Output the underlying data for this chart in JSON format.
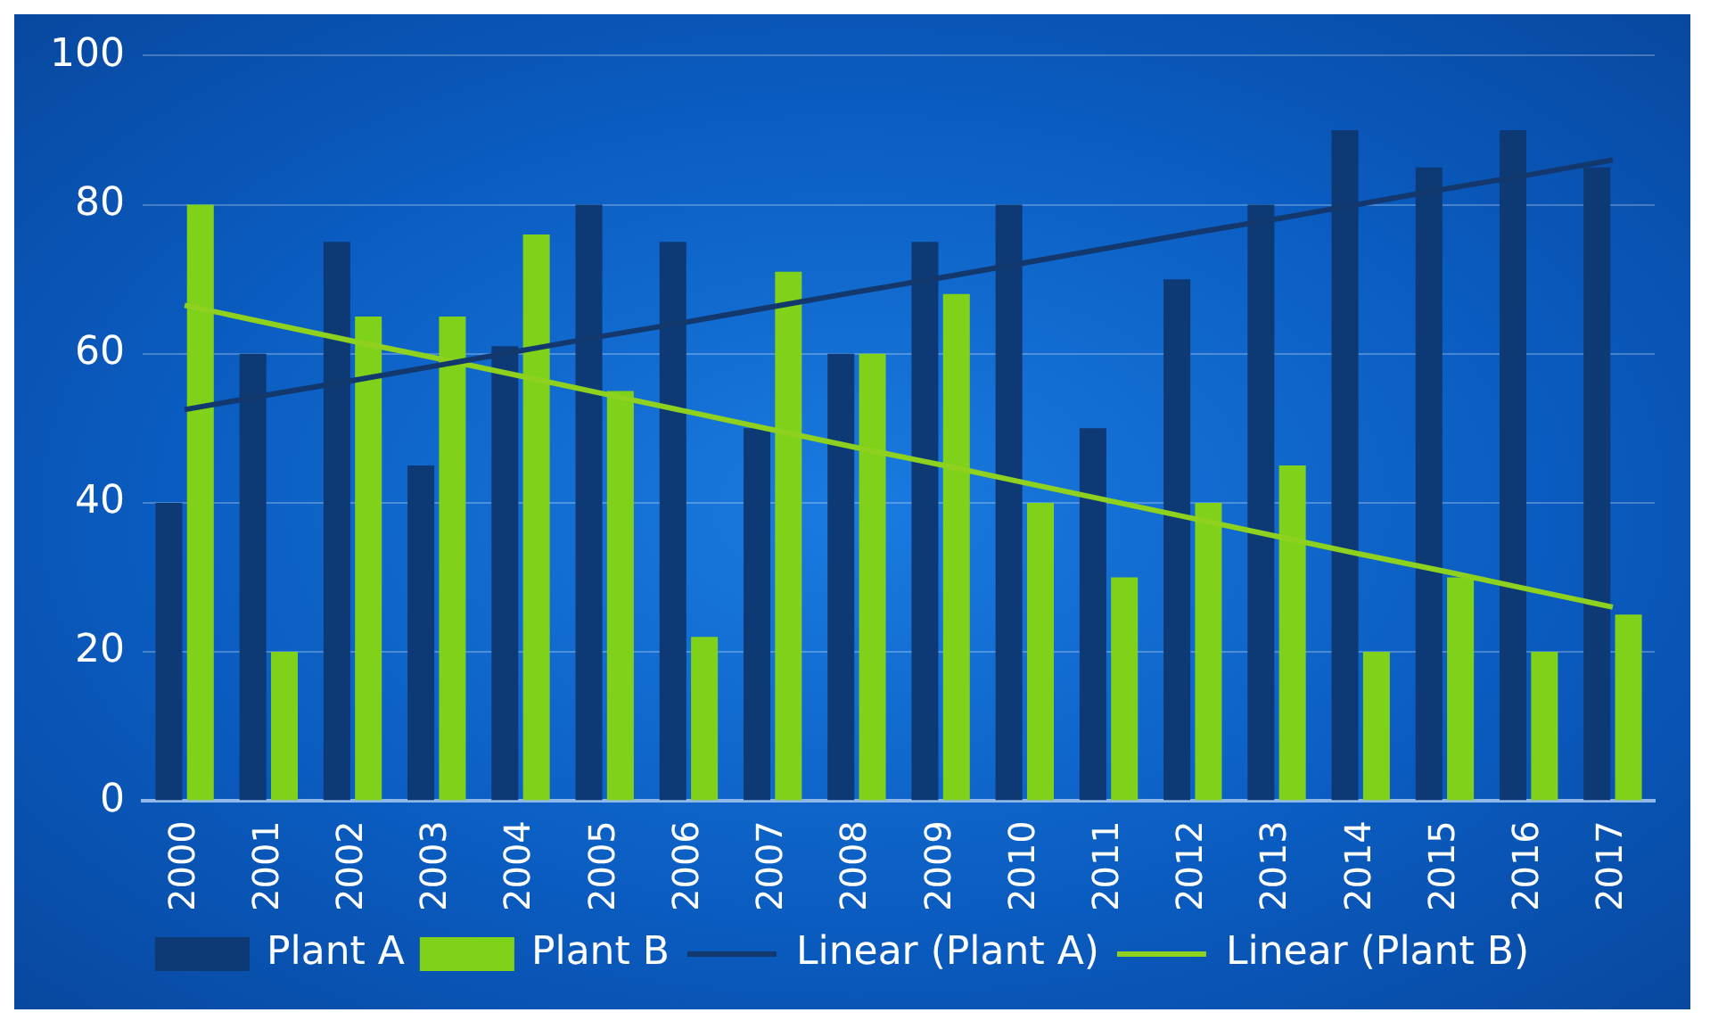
{
  "chart_data": {
    "type": "bar",
    "categories": [
      "2000",
      "2001",
      "2002",
      "2003",
      "2004",
      "2005",
      "2006",
      "2007",
      "2008",
      "2009",
      "2010",
      "2011",
      "2012",
      "2013",
      "2014",
      "2015",
      "2016",
      "2017"
    ],
    "series": [
      {
        "name": "Plant A",
        "color": "#0d3a75",
        "values": [
          40,
          60,
          75,
          45,
          61,
          80,
          75,
          50,
          60,
          75,
          80,
          50,
          70,
          80,
          90,
          85,
          90,
          85
        ]
      },
      {
        "name": "Plant B",
        "color": "#7fd11a",
        "values": [
          80,
          20,
          65,
          65,
          76,
          55,
          22,
          71,
          60,
          68,
          40,
          30,
          40,
          45,
          20,
          30,
          20,
          25
        ]
      },
      {
        "name": "Linear (Plant A)",
        "type": "line",
        "color": "#12386e",
        "values": [
          52.5,
          54.5,
          56.4,
          58.4,
          60.4,
          62.4,
          64.3,
          66.3,
          68.3,
          70.2,
          72.2,
          74.2,
          76.2,
          78.1,
          80.1,
          82.1,
          84.0,
          86
        ]
      },
      {
        "name": "Linear (Plant B)",
        "type": "line",
        "color": "#8ed11e",
        "values": [
          66.5,
          64.1,
          61.7,
          59.4,
          57.0,
          54.6,
          52.2,
          49.8,
          47.4,
          45.1,
          42.7,
          40.3,
          37.9,
          35.5,
          33.1,
          30.8,
          28.4,
          26
        ]
      }
    ],
    "ylim": [
      0,
      100
    ],
    "yticks": [
      0,
      20,
      40,
      60,
      80,
      100
    ],
    "grid": "y",
    "legend": "bottom",
    "marker": "none"
  }
}
